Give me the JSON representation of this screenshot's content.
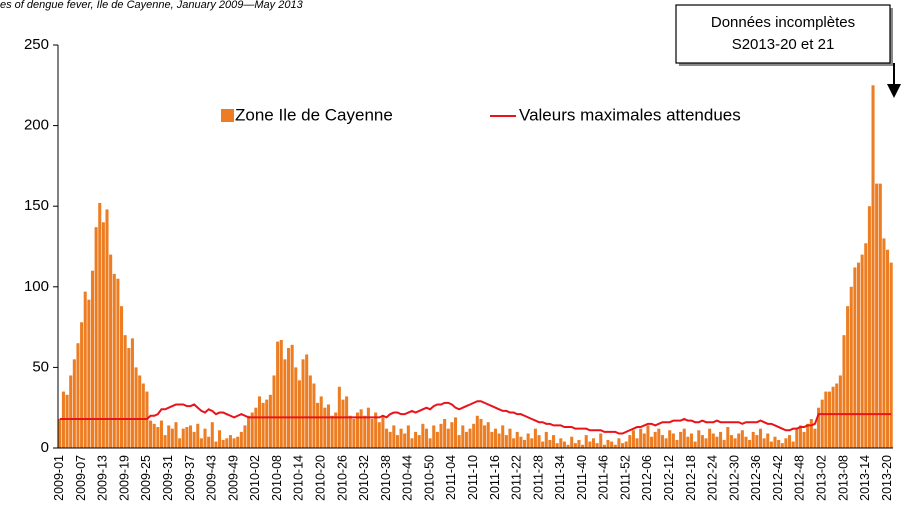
{
  "chart_data": {
    "type": "bar",
    "title": "es of dengue fever, Ile de Cayenne, January 2009—May 2013",
    "annotation": [
      "Données incomplètes",
      "S2013-20 et 21"
    ],
    "categories": [
      "2009-01",
      null,
      null,
      null,
      null,
      null,
      "2009-07",
      null,
      null,
      null,
      null,
      null,
      "2009-13",
      null,
      null,
      null,
      null,
      null,
      "2009-19",
      null,
      null,
      null,
      null,
      null,
      "2009-25",
      null,
      null,
      null,
      null,
      null,
      "2009-31",
      null,
      null,
      null,
      null,
      null,
      "2009-37",
      null,
      null,
      null,
      null,
      null,
      "2009-43",
      null,
      null,
      null,
      null,
      null,
      "2009-49",
      null,
      null,
      null,
      null,
      null,
      "2010-02",
      null,
      null,
      null,
      null,
      null,
      "2010-08",
      null,
      null,
      null,
      null,
      null,
      "2010-14",
      null,
      null,
      null,
      null,
      null,
      "2010-20",
      null,
      null,
      null,
      null,
      null,
      "2010-26",
      null,
      null,
      null,
      null,
      null,
      "2010-32",
      null,
      null,
      null,
      null,
      null,
      "2010-38",
      null,
      null,
      null,
      null,
      null,
      "2010-44",
      null,
      null,
      null,
      null,
      null,
      "2010-50",
      null,
      null,
      null,
      null,
      null,
      "2011-04",
      null,
      null,
      null,
      null,
      null,
      "2011-10",
      null,
      null,
      null,
      null,
      null,
      "2011-16",
      null,
      null,
      null,
      null,
      null,
      "2011-22",
      null,
      null,
      null,
      null,
      null,
      "2011-28",
      null,
      null,
      null,
      null,
      null,
      "2011-34",
      null,
      null,
      null,
      null,
      null,
      "2011-40",
      null,
      null,
      null,
      null,
      null,
      "2011-46",
      null,
      null,
      null,
      null,
      null,
      "2011-52",
      null,
      null,
      null,
      null,
      null,
      "2012-06",
      null,
      null,
      null,
      null,
      null,
      "2012-12",
      null,
      null,
      null,
      null,
      null,
      "2012-18",
      null,
      null,
      null,
      null,
      null,
      "2012-24",
      null,
      null,
      null,
      null,
      null,
      "2012-30",
      null,
      null,
      null,
      null,
      null,
      "2012-36",
      null,
      null,
      null,
      null,
      null,
      "2012-42",
      null,
      null,
      null,
      null,
      null,
      "2012-48",
      null,
      null,
      null,
      null,
      null,
      "2013-02",
      null,
      null,
      null,
      null,
      null,
      "2013-08",
      null,
      null,
      null,
      null,
      null,
      "2013-14",
      null,
      null,
      null,
      null,
      null,
      "2013-20",
      null
    ],
    "series": [
      {
        "name": "Zone Ile de Cayenne",
        "type": "bar",
        "color": "#ED7D22",
        "values": [
          18,
          35,
          33,
          45,
          55,
          65,
          78,
          97,
          92,
          110,
          137,
          152,
          140,
          148,
          120,
          108,
          105,
          88,
          70,
          62,
          68,
          50,
          45,
          40,
          35,
          17,
          15,
          13,
          17,
          8,
          14,
          12,
          16,
          6,
          12,
          13,
          14,
          10,
          15,
          6,
          12,
          7,
          16,
          4,
          11,
          5,
          6,
          8,
          6,
          7,
          10,
          14,
          20,
          22,
          25,
          32,
          28,
          30,
          33,
          45,
          66,
          67,
          55,
          62,
          64,
          50,
          42,
          55,
          58,
          45,
          40,
          28,
          32,
          25,
          27,
          20,
          22,
          38,
          30,
          32,
          20,
          18,
          22,
          24,
          20,
          25,
          18,
          22,
          16,
          20,
          12,
          10,
          14,
          8,
          12,
          9,
          14,
          6,
          10,
          8,
          15,
          12,
          6,
          14,
          10,
          15,
          18,
          12,
          16,
          19,
          8,
          14,
          10,
          12,
          15,
          20,
          18,
          14,
          16,
          10,
          12,
          9,
          14,
          8,
          12,
          6,
          10,
          7,
          5,
          9,
          6,
          12,
          8,
          4,
          10,
          5,
          8,
          3,
          6,
          4,
          2,
          7,
          3,
          5,
          2,
          8,
          4,
          6,
          3,
          9,
          2,
          5,
          4,
          2,
          6,
          3,
          4,
          8,
          11,
          6,
          12,
          9,
          14,
          7,
          10,
          12,
          8,
          6,
          11,
          9,
          5,
          10,
          12,
          7,
          9,
          4,
          11,
          8,
          6,
          12,
          9,
          7,
          10,
          5,
          13,
          8,
          6,
          9,
          11,
          7,
          5,
          10,
          8,
          12,
          6,
          9,
          4,
          7,
          5,
          3,
          6,
          8,
          4,
          12,
          14,
          10,
          15,
          18,
          12,
          25,
          30,
          35,
          35,
          38,
          40,
          45,
          70,
          88,
          100,
          112,
          115,
          120,
          127,
          150,
          225,
          164,
          164,
          130,
          123,
          115
        ]
      },
      {
        "name": "Valeurs maximales attendues",
        "type": "line",
        "color": "#E8141B",
        "values": [
          18,
          18,
          18,
          18,
          18,
          18,
          18,
          18,
          18,
          18,
          18,
          18,
          18,
          18,
          18,
          18,
          18,
          18,
          18,
          18,
          18,
          18,
          18,
          18,
          18,
          20,
          20,
          21,
          24,
          24,
          25,
          26,
          27,
          27,
          27,
          26,
          26,
          27,
          25,
          23,
          22,
          24,
          23,
          21,
          22,
          22,
          21,
          20,
          19,
          20,
          21,
          20,
          19,
          19,
          19,
          19,
          19,
          19,
          19,
          19,
          19,
          19,
          19,
          19,
          19,
          19,
          19,
          19,
          19,
          19,
          19,
          19,
          19,
          19,
          19,
          19,
          19,
          19,
          19,
          19,
          19,
          19,
          19,
          19,
          19,
          19,
          19,
          19,
          19,
          20,
          19,
          21,
          22,
          22,
          21,
          21,
          22,
          23,
          22,
          23,
          24,
          25,
          24,
          26,
          27,
          27,
          28,
          28,
          27,
          25,
          24,
          25,
          26,
          27,
          28,
          29,
          29,
          28,
          27,
          26,
          25,
          24,
          23,
          23,
          22,
          22,
          21,
          21,
          20,
          19,
          18,
          17,
          16,
          16,
          15,
          15,
          14,
          14,
          14,
          13,
          13,
          13,
          12,
          12,
          12,
          12,
          11,
          11,
          11,
          11,
          10,
          10,
          10,
          10,
          9,
          9,
          10,
          11,
          12,
          13,
          13,
          14,
          15,
          15,
          14,
          15,
          16,
          16,
          16,
          17,
          17,
          17,
          18,
          17,
          17,
          16,
          16,
          17,
          16,
          16,
          16,
          17,
          16,
          16,
          16,
          16,
          16,
          16,
          15,
          16,
          16,
          16,
          16,
          17,
          16,
          15,
          15,
          14,
          13,
          12,
          11,
          11,
          12,
          12,
          13,
          13,
          14,
          14,
          15,
          21,
          21,
          21,
          21,
          21,
          21,
          21,
          21,
          21,
          21,
          21,
          21,
          21,
          21,
          21,
          21,
          21,
          21,
          21,
          21,
          21
        ]
      }
    ],
    "ylim": [
      0,
      250
    ],
    "yticks": [
      0,
      50,
      100,
      150,
      200,
      250
    ]
  }
}
